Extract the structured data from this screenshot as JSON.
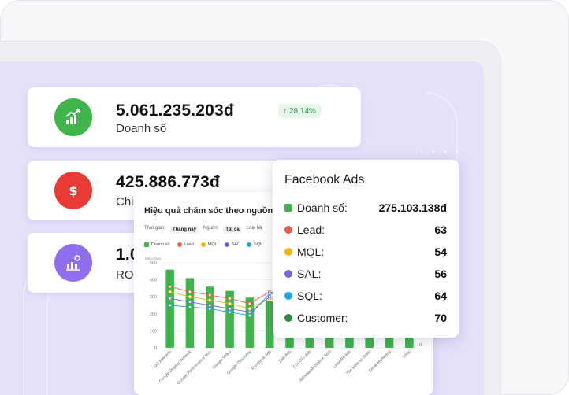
{
  "stats": [
    {
      "value": "5.061.235.203đ",
      "label": "Doanh số",
      "icon": "growth-chart-icon",
      "color": "#3fb54c",
      "trend": "28,14%"
    },
    {
      "value": "425.886.773đ",
      "label": "Chi",
      "icon": "dollar-icon",
      "color": "#e83b35"
    },
    {
      "value": "1.0",
      "label": "ROI",
      "icon": "roi-chart-icon",
      "color": "#8f6ff0"
    }
  ],
  "chart": {
    "title": "Hiệu quả chăm sóc theo nguồn",
    "filters": {
      "time_label": "Thời gian:",
      "time_value": "Tháng này",
      "source_label": "Nguồn:",
      "source_value": "Tất cả",
      "type_label": "Loại hà"
    },
    "legend": [
      {
        "name": "Doanh số",
        "color": "#3fb54c"
      },
      {
        "name": "Lead",
        "color": "#f05a4a"
      },
      {
        "name": "MQL",
        "color": "#f5b700"
      },
      {
        "name": "SAL",
        "color": "#7b61e8"
      },
      {
        "name": "SQL",
        "color": "#1ea7f0"
      }
    ],
    "y_caption": "triệu đồng"
  },
  "chart_data": {
    "type": "bar",
    "categories": [
      "GG Adwords",
      "Google Display Network",
      "Google Performance Max",
      "Google Video",
      "Google Discovery",
      "Facebook Ads",
      "Zalo Ads",
      "Cốc Cốc Ads",
      "Adnetwork (Native Ads)",
      "LinkedIn Ads",
      "Tìm kiếm tự nhiên",
      "Email Marketing",
      "Khác"
    ],
    "values": [
      460,
      410,
      360,
      335,
      295,
      275,
      240,
      210,
      185,
      165,
      150,
      120,
      90
    ],
    "ylim": [
      0,
      500
    ],
    "y_ticks": [
      0,
      100,
      200,
      300,
      400,
      500
    ],
    "right_ticks": [
      0,
      0
    ],
    "series": [
      {
        "name": "Lead",
        "color": "#f05a4a",
        "values": [
          360,
          330,
          310,
          290,
          260,
          330,
          300,
          270,
          240,
          220,
          200,
          180,
          160
        ]
      },
      {
        "name": "MQL",
        "color": "#f5b700",
        "values": [
          330,
          300,
          280,
          260,
          230,
          290,
          260,
          240,
          220,
          200,
          180,
          160,
          140
        ]
      },
      {
        "name": "SAL",
        "color": "#7b61e8",
        "values": [
          290,
          270,
          250,
          230,
          210,
          300,
          280,
          250,
          230,
          210,
          190,
          170,
          150
        ]
      },
      {
        "name": "SQL",
        "color": "#1ea7f0",
        "values": [
          250,
          240,
          230,
          210,
          190,
          320,
          290,
          260,
          240,
          220,
          200,
          180,
          160
        ]
      }
    ]
  },
  "tooltip": {
    "title": "Facebook Ads",
    "rows": [
      {
        "label": "Doanh số:",
        "value": "275.103.138đ",
        "color": "#3fb54c",
        "square": true
      },
      {
        "label": "Lead:",
        "value": "63",
        "color": "#f05a4a"
      },
      {
        "label": "MQL:",
        "value": "54",
        "color": "#f5b700"
      },
      {
        "label": "SAL:",
        "value": "56",
        "color": "#7b61e8"
      },
      {
        "label": "SQL:",
        "value": "64",
        "color": "#1ea7f0"
      },
      {
        "label": "Customer:",
        "value": "70",
        "color": "#2f8a3a"
      }
    ]
  }
}
